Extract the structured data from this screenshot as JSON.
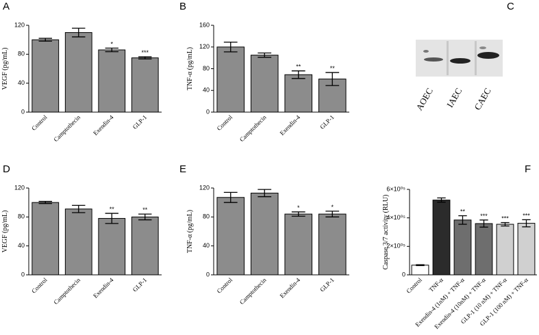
{
  "chart_data": [
    {
      "panel": "A",
      "type": "bar",
      "ylabel": "VEGF (pg/mL)",
      "categories": [
        "Control",
        "Camptothecin",
        "Exendin-4",
        "GLP-1"
      ],
      "values": [
        100,
        110,
        86,
        75
      ],
      "errors": [
        2,
        6,
        2.5,
        1.5
      ],
      "annotations": [
        null,
        null,
        "*",
        "***"
      ],
      "color": "#8c8c8c",
      "ylim": [
        0,
        120
      ],
      "yticks": [
        0,
        40,
        80,
        120
      ]
    },
    {
      "panel": "B",
      "type": "bar",
      "ylabel": "TNF-α (pg/mL)",
      "categories": [
        "Control",
        "Camptothecin",
        "Exendin-4",
        "GLP-1"
      ],
      "values": [
        120,
        105,
        69,
        61
      ],
      "errors": [
        9,
        4,
        7,
        12
      ],
      "annotations": [
        null,
        null,
        "**",
        "**"
      ],
      "color": "#8c8c8c",
      "ylim": [
        0,
        160
      ],
      "yticks": [
        0,
        40,
        80,
        120,
        160
      ]
    },
    {
      "panel": "C",
      "type": "blot",
      "lanes": [
        "AOEC",
        "IAEC",
        "CAEC"
      ]
    },
    {
      "panel": "D",
      "type": "bar",
      "ylabel": "VEGF (pg/mL)",
      "categories": [
        "Control",
        "Camptothecin",
        "Exendin-4",
        "GLP-1"
      ],
      "values": [
        100,
        91,
        78,
        80
      ],
      "errors": [
        1.5,
        5,
        7,
        4
      ],
      "annotations": [
        null,
        null,
        "**",
        "**"
      ],
      "color": "#8c8c8c",
      "ylim": [
        0,
        120
      ],
      "yticks": [
        0,
        40,
        80,
        120
      ]
    },
    {
      "panel": "E",
      "type": "bar",
      "ylabel": "TNF-α (pg/mL)",
      "categories": [
        "Control",
        "Camptothecin",
        "Exendin-4",
        "GLP-1"
      ],
      "values": [
        107,
        113,
        84,
        84
      ],
      "errors": [
        7,
        5,
        3,
        4
      ],
      "annotations": [
        null,
        null,
        "*",
        "*"
      ],
      "color": "#8c8c8c",
      "ylim": [
        0,
        120
      ],
      "yticks": [
        0,
        40,
        80,
        120
      ]
    },
    {
      "panel": "F",
      "type": "bar",
      "ylabel": "Caspase 3/7 activity (RLU)",
      "categories": [
        "Control",
        "TNF-α",
        "Exendin-4 (1nM) + TNF-α",
        "Exendin-4 (10nM) + TNF-α",
        "GLP-1 (10 nM) + TNF-α",
        "GLP-1 (100 nM) + TNF-α"
      ],
      "values": [
        68000,
        525000,
        385000,
        360000,
        355000,
        362000
      ],
      "errors": [
        3000,
        15000,
        30000,
        25000,
        12000,
        25000
      ],
      "annotations": [
        null,
        null,
        "**",
        "***",
        "***",
        "***"
      ],
      "colors": [
        "#ffffff",
        "#2b2b2b",
        "#6e6e6e",
        "#6e6e6e",
        "#d0d0d0",
        "#d0d0d0"
      ],
      "ylim": [
        0,
        600000
      ],
      "yticks": [
        0,
        {
          "value": 200000,
          "label": "2×10⁰⁵"
        },
        {
          "value": 400000,
          "label": "4×10⁰⁵"
        },
        {
          "value": 600000,
          "label": "6×10⁰⁵"
        }
      ]
    }
  ]
}
